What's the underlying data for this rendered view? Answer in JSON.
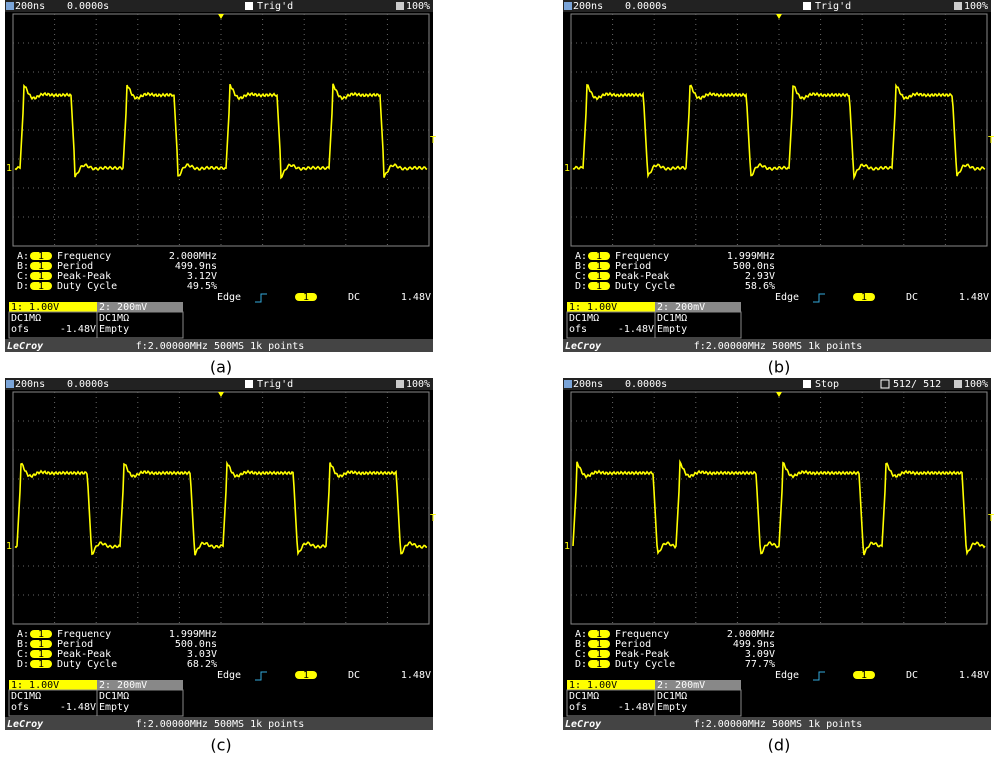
{
  "panels": [
    {
      "caption": "(a)",
      "header": {
        "timebase": "200ns",
        "delay": "0.0000s",
        "status": "Trig'd",
        "zoom": "100%"
      },
      "markers": {
        "channel": "1",
        "trigger": "T"
      },
      "measurements": [
        {
          "slot": "A:",
          "channel": "1",
          "name": "Frequency",
          "value": "2.000MHz"
        },
        {
          "slot": "B:",
          "channel": "1",
          "name": "Period",
          "value": "499.9ns"
        },
        {
          "slot": "C:",
          "channel": "1",
          "name": "Peak-Peak",
          "value": "3.12V"
        },
        {
          "slot": "D:",
          "channel": "1",
          "name": "Duty Cycle",
          "value": "49.5%"
        }
      ],
      "trigger": {
        "mode": "Edge",
        "channel": "1",
        "coupling": "DC",
        "level": "1.48V"
      },
      "channel1": {
        "label": "1: 1.00V",
        "coupling": "DC1MΩ",
        "offset_label": "ofs",
        "offset": "-1.48V"
      },
      "channel2": {
        "label": "2: 200mV",
        "coupling": "DC1MΩ",
        "state": "Empty"
      },
      "footer": {
        "brand": "LeCroy",
        "info": "f:2.00000MHz  500MS 1k points"
      }
    },
    {
      "caption": "(b)",
      "header": {
        "timebase": "200ns",
        "delay": "0.0000s",
        "status": "Trig'd",
        "zoom": "100%"
      },
      "markers": {
        "channel": "1",
        "trigger": "T"
      },
      "measurements": [
        {
          "slot": "A:",
          "channel": "1",
          "name": "Frequency",
          "value": "1.999MHz"
        },
        {
          "slot": "B:",
          "channel": "1",
          "name": "Period",
          "value": "500.0ns"
        },
        {
          "slot": "C:",
          "channel": "1",
          "name": "Peak-Peak",
          "value": "2.93V"
        },
        {
          "slot": "D:",
          "channel": "1",
          "name": "Duty Cycle",
          "value": "58.6%"
        }
      ],
      "trigger": {
        "mode": "Edge",
        "channel": "1",
        "coupling": "DC",
        "level": "1.48V"
      },
      "channel1": {
        "label": "1: 1.00V",
        "coupling": "DC1MΩ",
        "offset_label": "ofs",
        "offset": "-1.48V"
      },
      "channel2": {
        "label": "2: 200mV",
        "coupling": "DC1MΩ",
        "state": "Empty"
      },
      "footer": {
        "brand": "LeCroy",
        "info": "f:2.00000MHz  500MS 1k points"
      }
    },
    {
      "caption": "(c)",
      "header": {
        "timebase": "200ns",
        "delay": "0.0000s",
        "status": "Trig'd",
        "zoom": "100%"
      },
      "markers": {
        "channel": "1",
        "trigger": "T"
      },
      "measurements": [
        {
          "slot": "A:",
          "channel": "1",
          "name": "Frequency",
          "value": "1.999MHz"
        },
        {
          "slot": "B:",
          "channel": "1",
          "name": "Period",
          "value": "500.0ns"
        },
        {
          "slot": "C:",
          "channel": "1",
          "name": "Peak-Peak",
          "value": "3.03V"
        },
        {
          "slot": "D:",
          "channel": "1",
          "name": "Duty Cycle",
          "value": "68.2%"
        }
      ],
      "trigger": {
        "mode": "Edge",
        "channel": "1",
        "coupling": "DC",
        "level": "1.48V"
      },
      "channel1": {
        "label": "1: 1.00V",
        "coupling": "DC1MΩ",
        "offset_label": "ofs",
        "offset": "-1.48V"
      },
      "channel2": {
        "label": "2: 200mV",
        "coupling": "DC1MΩ",
        "state": "Empty"
      },
      "footer": {
        "brand": "LeCroy",
        "info": "f:2.00000MHz  500MS 1k points"
      }
    },
    {
      "caption": "(d)",
      "header": {
        "timebase": "200ns",
        "delay": "0.0000s",
        "status": "Stop",
        "acquisitions": "512/ 512",
        "zoom": "100%"
      },
      "markers": {
        "channel": "1",
        "trigger": "T"
      },
      "measurements": [
        {
          "slot": "A:",
          "channel": "1",
          "name": "Frequency",
          "value": "2.000MHz"
        },
        {
          "slot": "B:",
          "channel": "1",
          "name": "Period",
          "value": "499.9ns"
        },
        {
          "slot": "C:",
          "channel": "1",
          "name": "Peak-Peak",
          "value": "3.09V"
        },
        {
          "slot": "D:",
          "channel": "1",
          "name": "Duty Cycle",
          "value": "77.7%"
        }
      ],
      "trigger": {
        "mode": "Edge",
        "channel": "1",
        "coupling": "DC",
        "level": "1.48V"
      },
      "channel1": {
        "label": "1: 1.00V",
        "coupling": "DC1MΩ",
        "offset_label": "ofs",
        "offset": "-1.48V"
      },
      "channel2": {
        "label": "2: 200mV",
        "coupling": "DC1MΩ",
        "state": "Empty"
      },
      "footer": {
        "brand": "LeCroy",
        "info": "f:2.00000MHz  500MS 1k points"
      }
    }
  ]
}
